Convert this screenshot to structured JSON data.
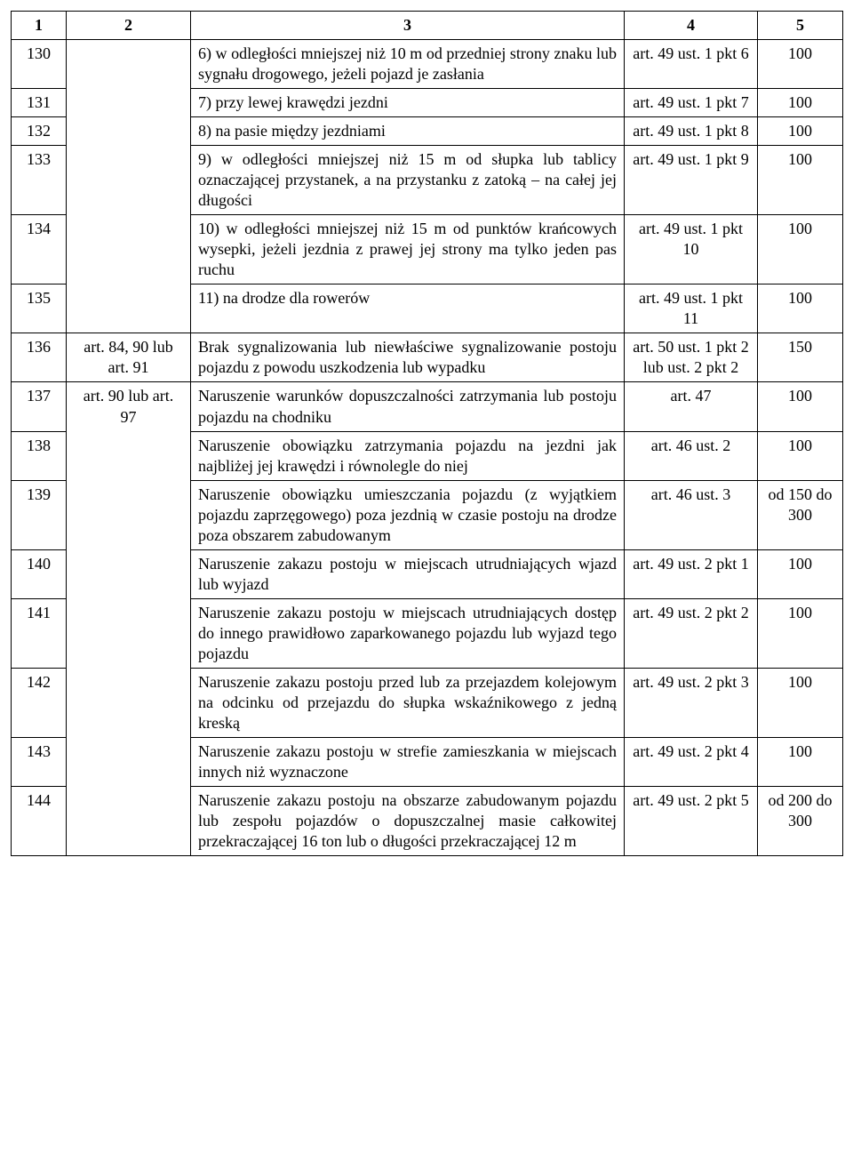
{
  "header": {
    "c1": "1",
    "c2": "2",
    "c3": "3",
    "c4": "4",
    "c5": "5"
  },
  "rows": [
    {
      "id": "130",
      "col2": "",
      "desc": "6)  w odległości mniejszej niż 10 m od przedniej strony znaku lub sygnału drogowego, jeżeli pojazd je zasłania",
      "ref": "art. 49 ust. 1 pkt 6",
      "fine": "100",
      "col2_open_bottom": true
    },
    {
      "id": "131",
      "col2": "",
      "desc": "7)  przy lewej krawędzi jezdni",
      "ref": "art. 49 ust. 1 pkt 7",
      "fine": "100",
      "col2_open_top": true,
      "col2_open_bottom": true
    },
    {
      "id": "132",
      "col2": "",
      "desc": "8)  na pasie między jezdniami",
      "ref": "art. 49 ust. 1 pkt 8",
      "fine": "100",
      "col2_open_top": true,
      "col2_open_bottom": true
    },
    {
      "id": "133",
      "col2": "",
      "desc": "9)  w odległości mniejszej niż 15 m od słupka lub tablicy oznaczającej przystanek, a na przystanku z zatoką – na całej jej długości",
      "ref": "art. 49 ust. 1 pkt 9",
      "fine": "100",
      "col2_open_top": true,
      "col2_open_bottom": true
    },
    {
      "id": "134",
      "col2": "",
      "desc": "10)  w odległości mniejszej niż 15 m od punktów krańcowych wysepki, jeżeli jezdnia z prawej jej strony ma tylko jeden pas ruchu",
      "ref": "art. 49 ust. 1 pkt 10",
      "fine": "100",
      "col2_open_top": true,
      "col2_open_bottom": true
    },
    {
      "id": "135",
      "col2": "",
      "desc": "11)  na drodze dla rowerów",
      "ref": "art. 49 ust. 1 pkt 11",
      "fine": "100",
      "col2_open_top": true
    },
    {
      "id": "136",
      "col2": "art. 84, 90 lub art. 91",
      "desc": "Brak sygnalizowania lub niewłaściwe sygnalizowanie postoju pojazdu z powodu uszkodzenia lub wypadku",
      "ref": "art. 50 ust. 1 pkt 2 lub ust. 2 pkt 2",
      "fine": "150"
    },
    {
      "id": "137",
      "col2": "art. 90 lub art. 97",
      "desc": "Naruszenie warunków dopuszczalności zatrzymania lub postoju pojazdu na chodniku",
      "ref": "art. 47",
      "fine": "100",
      "col2_open_bottom": true
    },
    {
      "id": "138",
      "col2": "",
      "desc": "Naruszenie obowiązku zatrzymania pojazdu na jezdni jak najbliżej jej krawędzi i równolegle do niej",
      "ref": "art. 46 ust. 2",
      "fine": "100",
      "col2_open_top": true,
      "col2_open_bottom": true
    },
    {
      "id": "139",
      "col2": "",
      "desc": "Naruszenie obowiązku umieszczania pojazdu (z wyjątkiem pojazdu zaprzęgowego) poza jezdnią w czasie postoju na drodze poza obszarem zabudowanym",
      "ref": "art. 46 ust. 3",
      "fine": "od 150 do 300",
      "col2_open_top": true,
      "col2_open_bottom": true
    },
    {
      "id": "140",
      "col2": "",
      "desc": "Naruszenie zakazu postoju w miejscach utrudniających wjazd lub wyjazd",
      "ref": "art. 49 ust. 2 pkt 1",
      "fine": "100",
      "col2_open_top": true,
      "col2_open_bottom": true
    },
    {
      "id": "141",
      "col2": "",
      "desc": "Naruszenie zakazu postoju w miejscach utrudniających dostęp do innego prawidłowo zaparkowanego pojazdu lub wyjazd tego pojazdu",
      "ref": "art. 49 ust. 2 pkt 2",
      "fine": "100",
      "col2_open_top": true,
      "col2_open_bottom": true
    },
    {
      "id": "142",
      "col2": "",
      "desc": "Naruszenie zakazu postoju przed lub za przejazdem kolejowym na odcinku od przejazdu do słupka wskaźnikowego z jedną kreską",
      "ref": "art. 49 ust. 2 pkt 3",
      "fine": "100",
      "col2_open_top": true,
      "col2_open_bottom": true
    },
    {
      "id": "143",
      "col2": "",
      "desc": "Naruszenie zakazu postoju w strefie zamieszkania w miejscach innych niż wyznaczone",
      "ref": "art. 49 ust. 2 pkt 4",
      "fine": "100",
      "col2_open_top": true,
      "col2_open_bottom": true
    },
    {
      "id": "144",
      "col2": "",
      "desc": "Naruszenie zakazu postoju na obszarze zabudowanym pojazdu lub zespołu pojazdów o dopuszczalnej masie całkowitej przekraczającej 16 ton lub o długości przekraczającej 12 m",
      "ref": "art. 49 ust. 2 pkt 5",
      "fine": "od 200 do 300",
      "col2_open_top": true
    }
  ]
}
